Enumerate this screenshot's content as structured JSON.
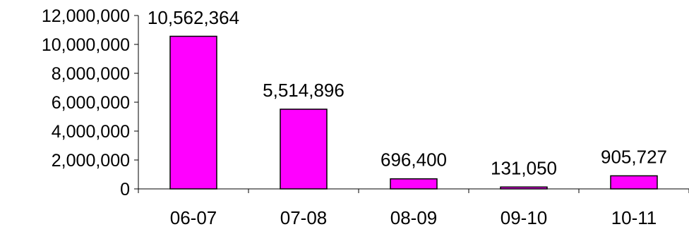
{
  "chart_data": {
    "type": "bar",
    "categories": [
      "06-07",
      "07-08",
      "08-09",
      "09-10",
      "10-11"
    ],
    "values": [
      10562364,
      5514896,
      696400,
      131050,
      905727
    ],
    "data_labels": [
      "10,562,364",
      "5,514,896",
      "696,400",
      "131,050",
      "905,727"
    ],
    "y_ticks": [
      0,
      2000000,
      4000000,
      6000000,
      8000000,
      10000000,
      12000000
    ],
    "y_tick_labels": [
      "0",
      "2,000,000",
      "4,000,000",
      "6,000,000",
      "8,000,000",
      "10,000,000",
      "12,000,000"
    ],
    "ylim": [
      0,
      12000000
    ],
    "title": "",
    "xlabel": "",
    "ylabel": "",
    "grid": false,
    "legend": "none",
    "bar_color": "#FF00FF",
    "bar_edge_color": "#000000"
  }
}
